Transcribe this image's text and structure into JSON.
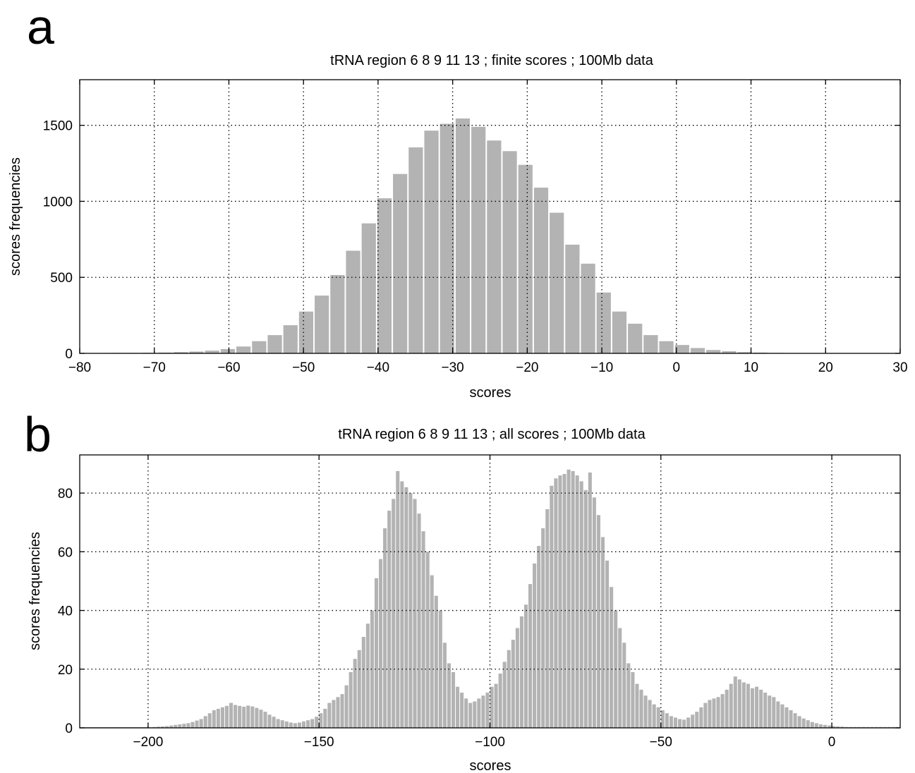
{
  "panel_letters": [
    "a",
    "b"
  ],
  "chart_data": [
    {
      "type": "bar",
      "panel": "a",
      "title": "tRNA region 6 8 9 11 13 ; finite scores ; 100Mb data",
      "xlabel": "scores",
      "ylabel": "scores frequencies",
      "xlim": [
        -80,
        30
      ],
      "ylim": [
        0,
        1800
      ],
      "xticks": [
        -80,
        -70,
        -60,
        -50,
        -40,
        -30,
        -20,
        -10,
        0,
        10,
        20,
        30
      ],
      "yticks": [
        0,
        500,
        1000,
        1500
      ],
      "grid": true,
      "bin_start": -80,
      "bin_width": 2.1,
      "values": [
        2,
        2,
        3,
        3,
        4,
        5,
        8,
        12,
        18,
        28,
        45,
        80,
        120,
        185,
        275,
        380,
        515,
        675,
        855,
        1020,
        1180,
        1355,
        1465,
        1510,
        1545,
        1490,
        1400,
        1330,
        1240,
        1090,
        925,
        715,
        590,
        400,
        275,
        195,
        120,
        80,
        55,
        35,
        22,
        14,
        8,
        5,
        3,
        2,
        2,
        1,
        1,
        1,
        1,
        1
      ]
    },
    {
      "type": "bar",
      "panel": "b",
      "title": "tRNA region 6 8 9 11 13 ; all scores ; 100Mb data",
      "xlabel": "scores",
      "ylabel": "scores frequencies",
      "xlim": [
        -220,
        20
      ],
      "ylim": [
        0,
        93
      ],
      "xticks": [
        -200,
        -150,
        -100,
        -50,
        0
      ],
      "yticks": [
        0,
        20,
        40,
        60,
        80
      ],
      "grid": true,
      "bin_start": -220,
      "bin_width": 1.25,
      "values": [
        0,
        0,
        0,
        0,
        0,
        0,
        0,
        0,
        0,
        0,
        0,
        0,
        0,
        0,
        0,
        0,
        0.2,
        0.3,
        0.4,
        0.5,
        0.6,
        0.8,
        1,
        1.2,
        1.4,
        1.6,
        2,
        2.5,
        3,
        4,
        5,
        6,
        6.5,
        7,
        7.5,
        8.5,
        7.8,
        7.5,
        7.2,
        7.6,
        7.3,
        6.8,
        6.2,
        5.5,
        4.5,
        3.8,
        3,
        2.6,
        2.2,
        1.8,
        1.6,
        1.8,
        2.2,
        2.6,
        3,
        3.8,
        5,
        6.5,
        8.5,
        9.5,
        10.5,
        11.5,
        14.5,
        19,
        23.5,
        26.5,
        31,
        35.5,
        40,
        51,
        57.5,
        68,
        74,
        78,
        87.5,
        84,
        82,
        80,
        78,
        73,
        67,
        60,
        52,
        45,
        40,
        29,
        22,
        19,
        14,
        12,
        10,
        8.5,
        9,
        10,
        11,
        12,
        14,
        15,
        18.5,
        22.5,
        26.5,
        30,
        34,
        38,
        42,
        49,
        56,
        62,
        68,
        74.5,
        82.5,
        85,
        86,
        86.5,
        88,
        87.5,
        86,
        84,
        81,
        87,
        78.5,
        72.5,
        65,
        57,
        48,
        40,
        34,
        29,
        22,
        19,
        15,
        13,
        11,
        9.5,
        8,
        7,
        6,
        5,
        4,
        3.5,
        3,
        2.8,
        3.5,
        4.5,
        5.5,
        7,
        8.5,
        9.5,
        10,
        10.5,
        11.5,
        13,
        15,
        17.5,
        16.5,
        15.5,
        15,
        13.5,
        14,
        13,
        12,
        11,
        10.5,
        9,
        8,
        7,
        6,
        5,
        4,
        3.2,
        2.6,
        2,
        1.6,
        1.2,
        1,
        0.8,
        0.6,
        0.5,
        0.4,
        0.3,
        0.3,
        0.3,
        0.3,
        0.3,
        0.3,
        0.3,
        0.3,
        0.3,
        0.3,
        0.3,
        0.3,
        0.3
      ]
    }
  ]
}
